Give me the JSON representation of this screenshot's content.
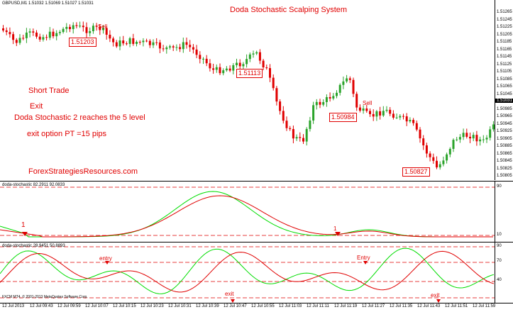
{
  "chart": {
    "symbol_header": "GBPUSD,M1  1.51032 1.51069 1.51027 1.51031",
    "title": "Doda Stochastic Scalping System",
    "current_price": "1.51031",
    "price_scale": [
      "1.51265",
      "1.51245",
      "1.51225",
      "1.51205",
      "1.51185",
      "1.51165",
      "1.51145",
      "1.51125",
      "1.51105",
      "1.51085",
      "1.51065",
      "1.51045",
      "1.51005",
      "1.50985",
      "1.50965",
      "1.50945",
      "1.50925",
      "1.50905",
      "1.50885",
      "1.50865",
      "1.50845",
      "1.50825",
      "1.50805"
    ],
    "annotations": {
      "short_trade": "Short Trade",
      "exit": "Exit",
      "doda_reaches": "Doda Stochastic 2 reaches the 5 level",
      "exit_option": "exit option PT =15 pips",
      "watermark": "ForexStrategiesResources.com"
    },
    "price_boxes": [
      "1.51203",
      "1.51113",
      "1.50984",
      "1.50827"
    ],
    "signals": {
      "sell1": "Sell",
      "sell2": "Sell"
    }
  },
  "indicator1": {
    "header": "doda-stochastic 82.2911 92.0833",
    "scale": [
      "90",
      "10"
    ],
    "marks": [
      "1",
      "1"
    ]
  },
  "indicator2": {
    "header": "doda-stochastic 28.9451 50.8893",
    "scale": [
      "90",
      "70",
      "40"
    ],
    "copyright": "FXCM MT4, © 2001-2013 MetaQuotes Software Corp.",
    "labels": {
      "entry1": "entry",
      "entry2": "Entry",
      "exit1": "exit",
      "exit2": "exit"
    }
  },
  "time_axis": [
    "12 Jul 2013",
    "12 Jul 09:43",
    "12 Jul 09:59",
    "12 Jul 10:07",
    "12 Jul 10:15",
    "12 Jul 10:23",
    "12 Jul 10:31",
    "12 Jul 10:39",
    "12 Jul 10:47",
    "12 Jul 10:55",
    "12 Jul 11:03",
    "12 Jul 11:11",
    "12 Jul 11:19",
    "12 Jul 11:27",
    "12 Jul 11:35",
    "12 Jul 11:43",
    "12 Jul 11:51",
    "12 Jul 11:59"
  ],
  "colors": {
    "bull": "#2aa32a",
    "bear": "#e00000",
    "stoch_green": "#00dd00",
    "stoch_red": "#e00000"
  }
}
